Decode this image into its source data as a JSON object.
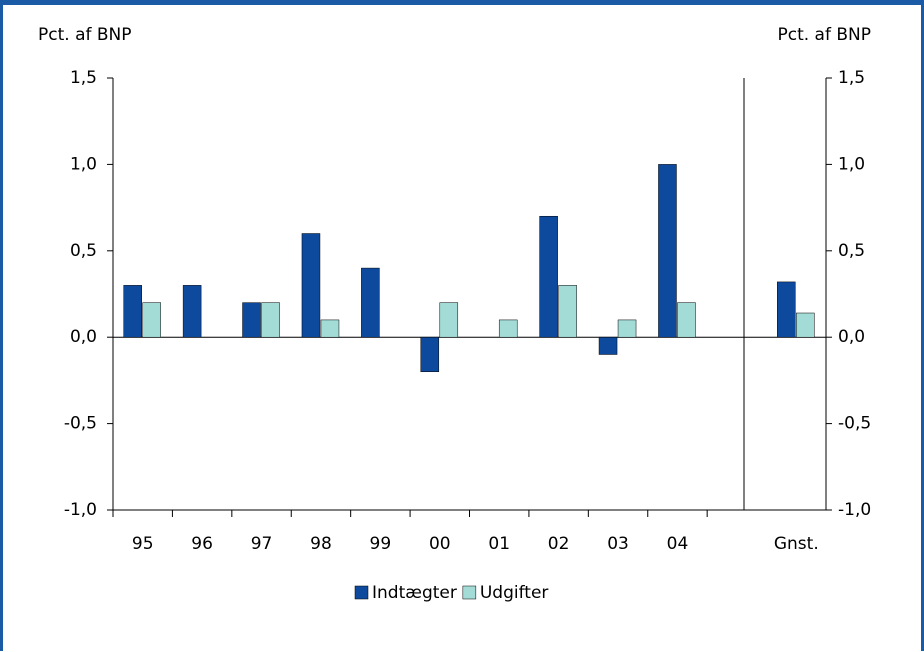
{
  "chart_data": {
    "type": "bar",
    "y_label": "Pct. af BNP",
    "y2_label": "Pct. af BNP",
    "categories": [
      "95",
      "96",
      "97",
      "98",
      "99",
      "00",
      "01",
      "02",
      "03",
      "04",
      null,
      "Gnst."
    ],
    "series": [
      {
        "name": "Indtægter",
        "color": "#0d4a9e",
        "values": [
          0.3,
          0.3,
          0.2,
          0.6,
          0.4,
          -0.2,
          0,
          0.7,
          -0.1,
          1.0,
          null,
          0.32
        ]
      },
      {
        "name": "Udgifter",
        "color": "#a3dcd6",
        "values": [
          0.2,
          0,
          0.2,
          0.1,
          0,
          0.2,
          0.1,
          0.3,
          0.1,
          0.2,
          null,
          0.14
        ]
      }
    ],
    "ylim": [
      -1.0,
      1.5
    ],
    "yticks": [
      {
        "value": -1.0,
        "label": "-1,0"
      },
      {
        "value": -0.5,
        "label": "-0,5"
      },
      {
        "value": 0,
        "label": "0,0"
      },
      {
        "value": 0.5,
        "label": "0,5"
      },
      {
        "value": 1.0,
        "label": "1,0"
      },
      {
        "value": 1.5,
        "label": "1,5"
      }
    ],
    "y2lim": [
      -1.0,
      1.5
    ],
    "y2ticks": [
      {
        "value": -1.0,
        "label": "-1,0"
      },
      {
        "value": -0.5,
        "label": "-0,5"
      },
      {
        "value": 0,
        "label": "0,0"
      },
      {
        "value": 0.5,
        "label": "0,5"
      },
      {
        "value": 1.0,
        "label": "1,0"
      },
      {
        "value": 1.5,
        "label": "1,5"
      }
    ],
    "grid": false,
    "legend": "bottom"
  }
}
